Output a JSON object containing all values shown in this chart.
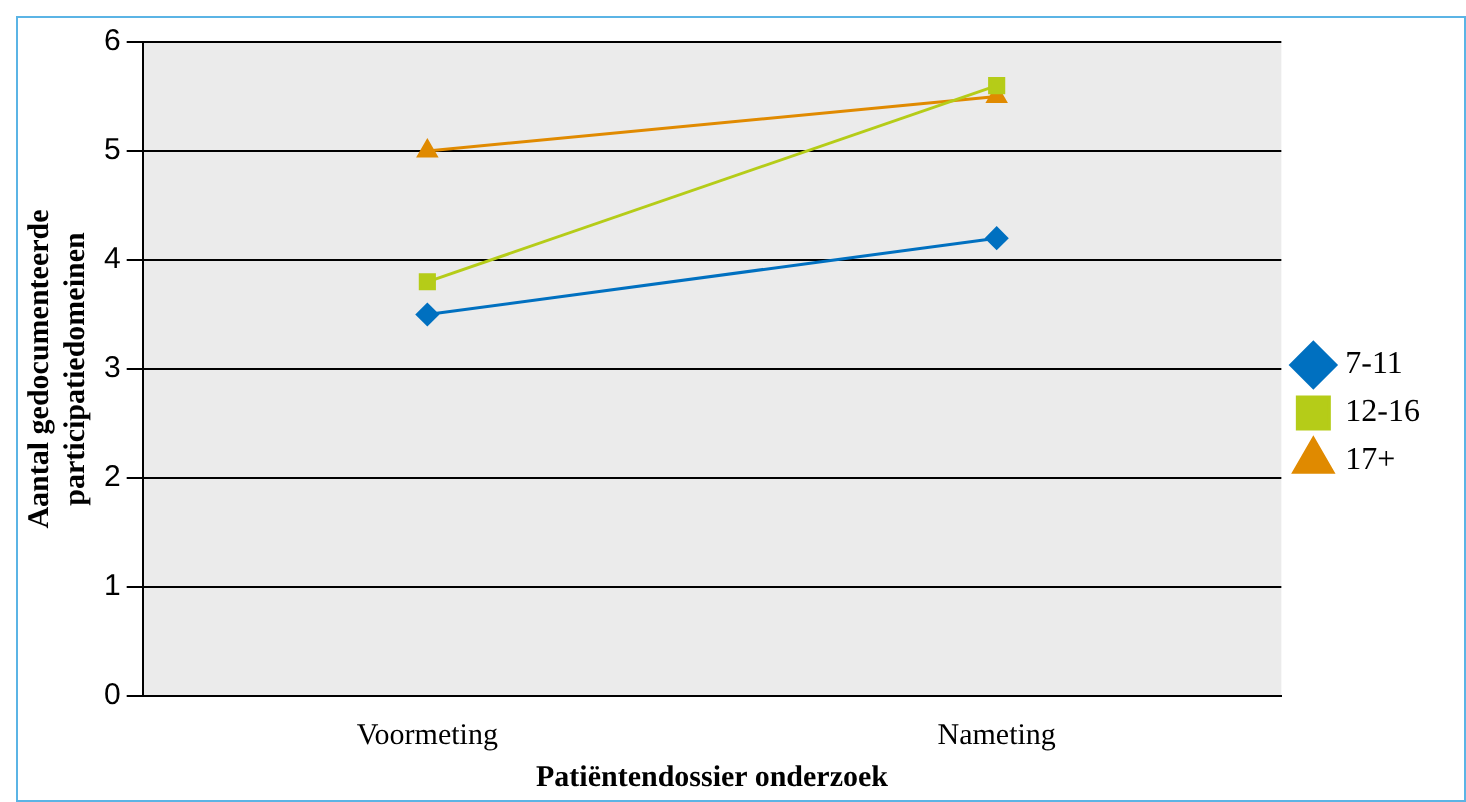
{
  "chart_data": {
    "type": "line",
    "xlabel": "Patiëntendossier onderzoek",
    "ylabel": "Aantal gedocumenteerde participatiedomeinen",
    "categories": [
      "Voormeting",
      "Nameting"
    ],
    "series": [
      {
        "name": "7-11",
        "color": "#0070c0",
        "values": [
          3.5,
          4.2
        ],
        "marker": "diamond"
      },
      {
        "name": "12-16",
        "color": "#b5cc18",
        "values": [
          3.8,
          5.6
        ],
        "marker": "square"
      },
      {
        "name": "17+",
        "color": "#e08a00",
        "values": [
          5.0,
          5.5
        ],
        "marker": "triangle"
      }
    ],
    "ylim": [
      0,
      6
    ],
    "yticks": [
      0,
      1,
      2,
      3,
      4,
      5,
      6
    ],
    "grid": "y",
    "legend": "right",
    "line_style": "solid"
  }
}
